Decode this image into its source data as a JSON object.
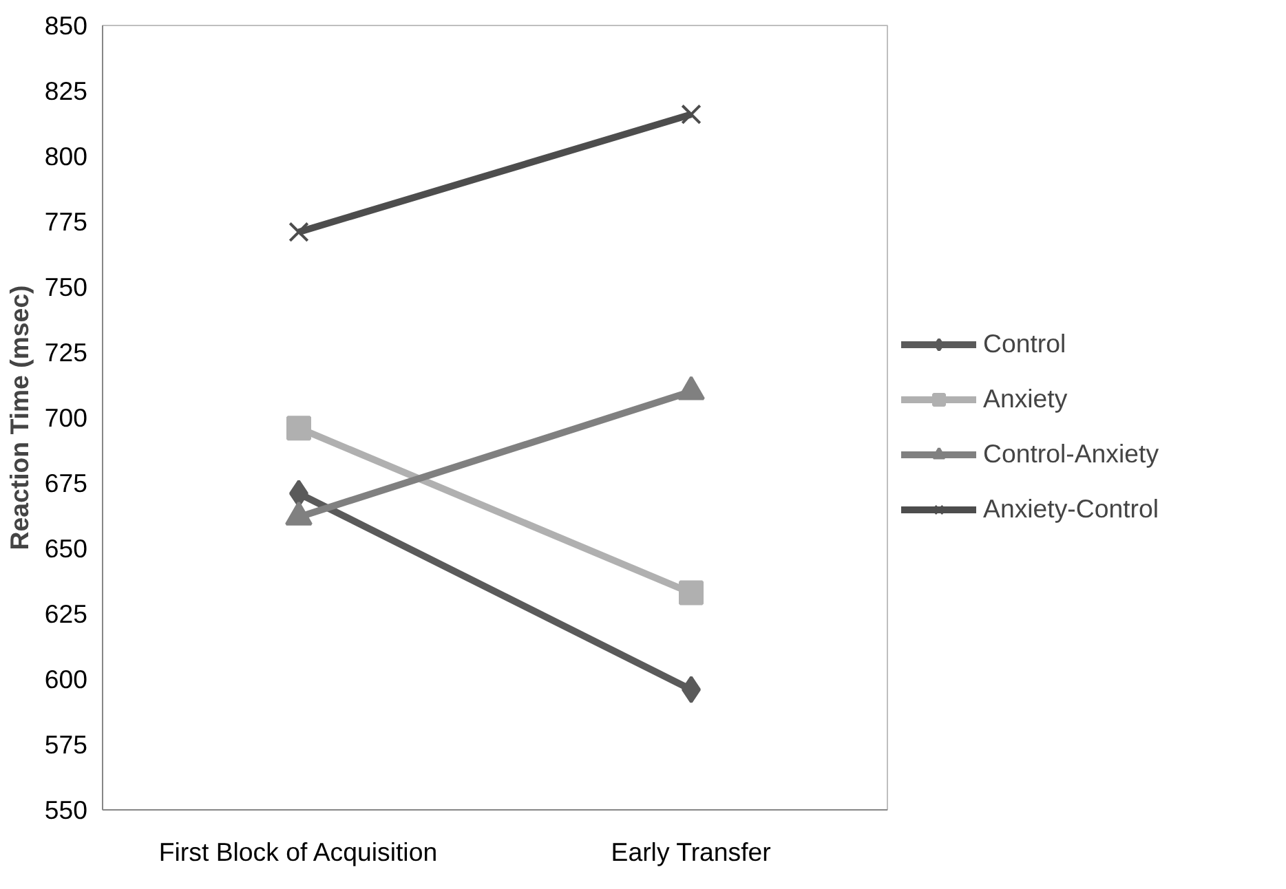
{
  "chart_data": {
    "type": "line",
    "ylabel": "Reaction Time (msec)",
    "categories": [
      "First Block of Acquisition",
      "Early Transfer"
    ],
    "series": [
      {
        "name": "Control",
        "color": "#5a5a5a",
        "marker": "diamond",
        "values": [
          671,
          596
        ]
      },
      {
        "name": "Anxiety",
        "color": "#b0b0b0",
        "marker": "square",
        "values": [
          696,
          633
        ]
      },
      {
        "name": "Control-Anxiety",
        "color": "#808080",
        "marker": "triangle",
        "values": [
          662,
          710
        ]
      },
      {
        "name": "Anxiety-Control",
        "color": "#4d4d4d",
        "marker": "x",
        "values": [
          771,
          816
        ]
      }
    ],
    "ylim": [
      550,
      850
    ],
    "yticks": [
      550,
      575,
      600,
      625,
      650,
      675,
      700,
      725,
      750,
      775,
      800,
      825,
      850
    ],
    "grid": false,
    "legend": "right",
    "line_style": "solid"
  }
}
